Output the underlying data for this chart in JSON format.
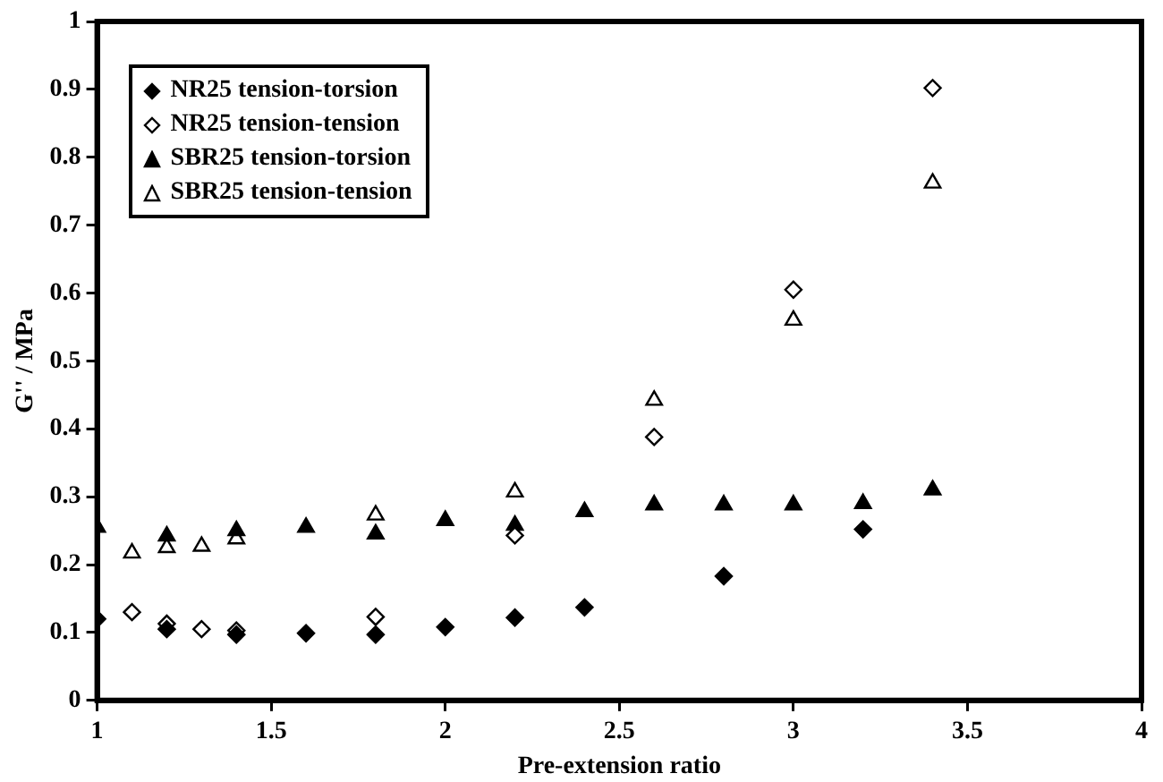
{
  "chart_data": {
    "type": "scatter",
    "xlabel": "Pre-extension ratio",
    "ylabel": "G'' / MPa",
    "xlim": [
      1,
      4
    ],
    "xticks": [
      1,
      1.5,
      2,
      2.5,
      3,
      3.5,
      4
    ],
    "ylim": [
      0,
      1
    ],
    "yticks": [
      0,
      0.1,
      0.2,
      0.3,
      0.4,
      0.5,
      0.6,
      0.7,
      0.8,
      0.9,
      1
    ],
    "grid": false,
    "legend": "top left",
    "series": [
      {
        "name": "NR25 tension-torsion",
        "color": "#000000",
        "marker": "diamond",
        "x": [
          1,
          1.2,
          1.4,
          1.6,
          1.8,
          2,
          2.2,
          2.4,
          2.8,
          3.2
        ],
        "values": [
          0.12,
          0.105,
          0.097,
          0.099,
          0.097,
          0.108,
          0.122,
          0.137,
          0.183,
          0.252
        ]
      },
      {
        "name": "NR25 tension-tension",
        "color": "#ffffff",
        "marker": "diamond",
        "x": [
          1.1,
          1.2,
          1.3,
          1.4,
          1.8,
          2.2,
          2.6,
          3,
          3.4
        ],
        "values": [
          0.13,
          0.113,
          0.105,
          0.103,
          0.123,
          0.243,
          0.388,
          0.605,
          0.902
        ]
      },
      {
        "name": "SBR25 tension-torsion",
        "color": "#000000",
        "marker": "triangle",
        "x": [
          1,
          1.2,
          1.4,
          1.6,
          1.8,
          2,
          2.2,
          2.4,
          2.6,
          2.8,
          3,
          3.2,
          3.4
        ],
        "values": [
          0.255,
          0.242,
          0.25,
          0.255,
          0.245,
          0.265,
          0.258,
          0.278,
          0.288,
          0.288,
          0.288,
          0.29,
          0.31
        ]
      },
      {
        "name": "SBR25 tension-tension",
        "color": "#ffffff",
        "marker": "triangle",
        "x": [
          1.1,
          1.2,
          1.3,
          1.4,
          1.8,
          2.2,
          2.6,
          3,
          3.4
        ],
        "values": [
          0.217,
          0.225,
          0.227,
          0.238,
          0.273,
          0.307,
          0.442,
          0.56,
          0.762
        ]
      }
    ]
  }
}
